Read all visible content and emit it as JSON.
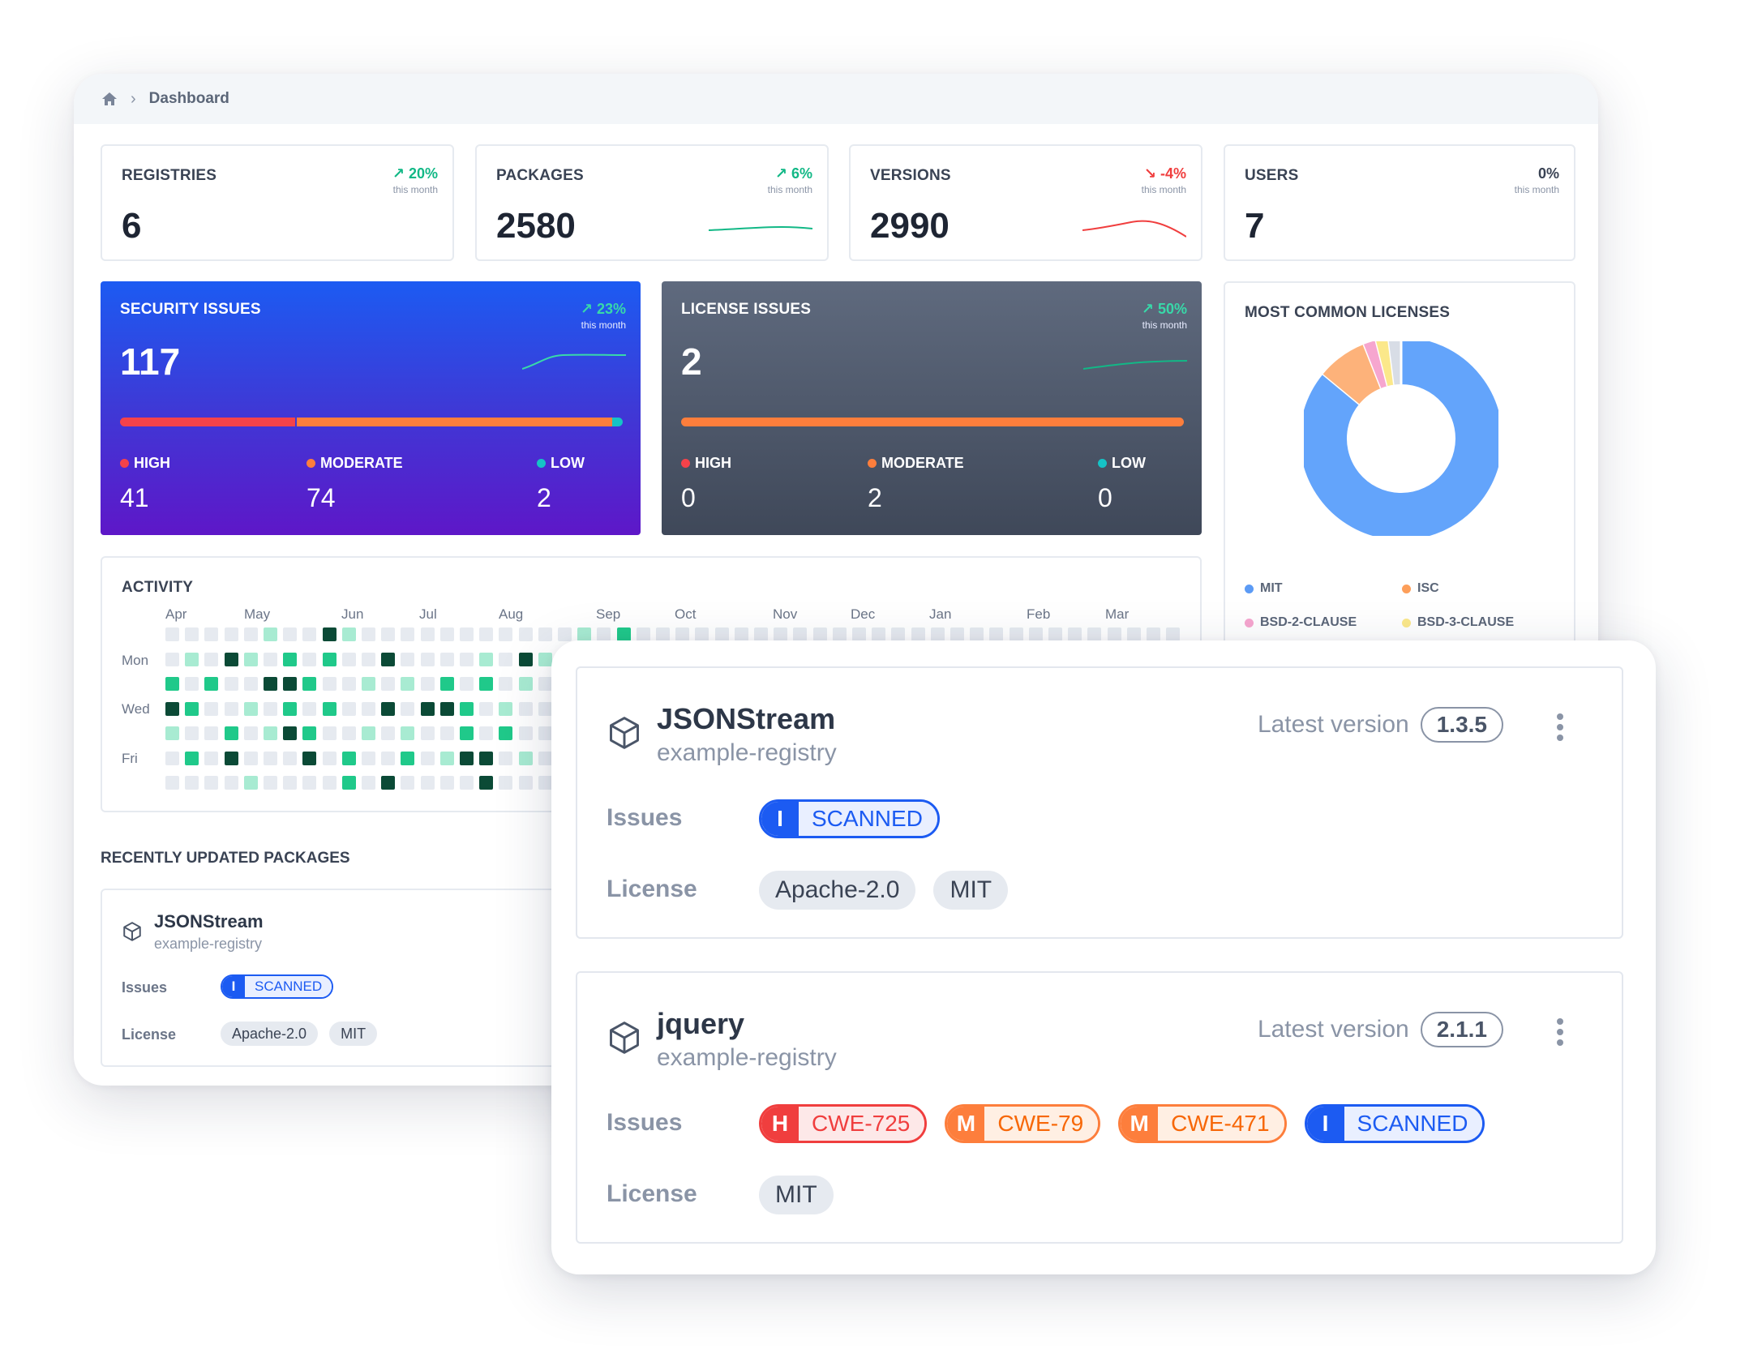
{
  "breadcrumb": {
    "current": "Dashboard"
  },
  "stats": [
    {
      "label": "REGISTRIES",
      "value": "6",
      "trend": "20%",
      "direction": "up",
      "sub": "this month"
    },
    {
      "label": "PACKAGES",
      "value": "2580",
      "trend": "6%",
      "direction": "up",
      "sub": "this month"
    },
    {
      "label": "VERSIONS",
      "value": "2990",
      "trend": "-4%",
      "direction": "down",
      "sub": "this month"
    },
    {
      "label": "USERS",
      "value": "7",
      "trend": "0%",
      "direction": "flat",
      "sub": "this month"
    }
  ],
  "security": {
    "label": "SECURITY ISSUES",
    "value": "117",
    "trend": "23%",
    "sub": "this month",
    "high_label": "HIGH",
    "high": "41",
    "moderate_label": "MODERATE",
    "moderate": "74",
    "low_label": "LOW",
    "low": "2"
  },
  "license_issues": {
    "label": "LICENSE ISSUES",
    "value": "2",
    "trend": "50%",
    "sub": "this month",
    "high_label": "HIGH",
    "high": "0",
    "moderate_label": "MODERATE",
    "moderate": "2",
    "low_label": "LOW",
    "low": "0"
  },
  "licenses": {
    "label": "MOST COMMON LICENSES",
    "legend": [
      "MIT",
      "ISC",
      "BSD-2-CLAUSE",
      "BSD-3-CLAUSE"
    ],
    "shares": [
      0.86,
      0.08,
      0.02,
      0.02,
      0.02
    ],
    "colors": [
      "#63a4fb",
      "#fdb27a",
      "#f6a6cf",
      "#fbe88a",
      "#d8dde6"
    ]
  },
  "activity": {
    "label": "ACTIVITY",
    "months": [
      "Apr",
      "May",
      "Jun",
      "Jul",
      "Aug",
      "Sep",
      "Oct",
      "Nov",
      "Dec",
      "Jan",
      "Feb",
      "Mar"
    ],
    "days": [
      "Mon",
      "Wed",
      "Fri"
    ],
    "weeks_visible": 52,
    "levels": [
      [
        0,
        0,
        0,
        0,
        0,
        1,
        0,
        0,
        3,
        1,
        0,
        0,
        0,
        0,
        0,
        0,
        0,
        0,
        0,
        0,
        0,
        1,
        0,
        2,
        0,
        0,
        0,
        0,
        0,
        0,
        0,
        0,
        0,
        0,
        0,
        0,
        0,
        0,
        0,
        0,
        0,
        0,
        0,
        0,
        0,
        0,
        0,
        0,
        0,
        0,
        0,
        0
      ],
      [
        0,
        1,
        0,
        3,
        1,
        0,
        2,
        0,
        2,
        0,
        0,
        3,
        0,
        0,
        0,
        0,
        1,
        0,
        3,
        1,
        0,
        0
      ],
      [
        2,
        0,
        2,
        0,
        0,
        3,
        3,
        2,
        0,
        0,
        1,
        0,
        1,
        0,
        2,
        0,
        2,
        0,
        1,
        0,
        0,
        3
      ],
      [
        3,
        2,
        0,
        0,
        1,
        0,
        2,
        0,
        2,
        0,
        0,
        3,
        0,
        3,
        3,
        2,
        0,
        1,
        0,
        0,
        1,
        0
      ],
      [
        1,
        0,
        0,
        2,
        0,
        1,
        3,
        2,
        0,
        0,
        1,
        0,
        1,
        0,
        0,
        2,
        0,
        2,
        0,
        0,
        1,
        0
      ],
      [
        0,
        2,
        0,
        3,
        0,
        0,
        0,
        3,
        0,
        2,
        0,
        0,
        2,
        0,
        1,
        3,
        3,
        0,
        1,
        0,
        1,
        0
      ],
      [
        0,
        0,
        0,
        0,
        1,
        0,
        0,
        0,
        0,
        2,
        0,
        3,
        0,
        0,
        0,
        0,
        3,
        0,
        0,
        0,
        0,
        0
      ]
    ],
    "level_colors": [
      "#e6eaf0",
      "#a8ebd2",
      "#20c98a",
      "#0b4a36"
    ]
  },
  "recent": {
    "title": "RECENTLY UPDATED PACKAGES",
    "name": "JSONStream",
    "registry": "example-registry",
    "issues_label": "Issues",
    "license_label": "License",
    "badge_sev": "I",
    "badge_text": "SCANNED",
    "licenses": [
      "Apache-2.0",
      "MIT"
    ]
  },
  "packages": [
    {
      "name": "JSONStream",
      "registry": "example-registry",
      "latest_label": "Latest version",
      "version": "1.3.5",
      "issues_label": "Issues",
      "license_label": "License",
      "issues": [
        {
          "sev": "I",
          "text": "SCANNED",
          "kind": "info"
        }
      ],
      "licenses": [
        "Apache-2.0",
        "MIT"
      ]
    },
    {
      "name": "jquery",
      "registry": "example-registry",
      "latest_label": "Latest version",
      "version": "2.1.1",
      "issues_label": "Issues",
      "license_label": "License",
      "issues": [
        {
          "sev": "H",
          "text": "CWE-725",
          "kind": "high"
        },
        {
          "sev": "M",
          "text": "CWE-79",
          "kind": "mod"
        },
        {
          "sev": "M",
          "text": "CWE-471",
          "kind": "mod"
        },
        {
          "sev": "I",
          "text": "SCANNED",
          "kind": "info"
        }
      ],
      "licenses": [
        "MIT"
      ]
    }
  ]
}
